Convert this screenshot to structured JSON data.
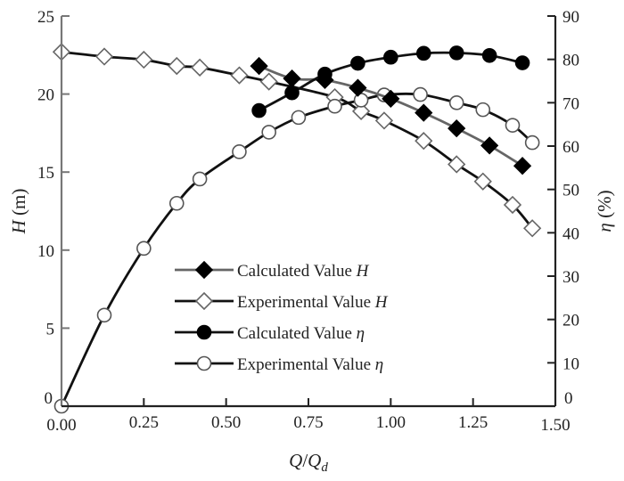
{
  "chart_data": {
    "type": "line",
    "title": "",
    "xlabel": "Q/Qd",
    "xlabel_parts": {
      "main": "Q",
      "sep": "/",
      "q": "Q",
      "sub": "d"
    },
    "ylabel": "H (m)",
    "ylabel_parts": {
      "sym": "H",
      "unit": " (m)"
    },
    "y2label": "η (%)",
    "y2label_parts": {
      "sym": "η",
      "unit": " (%)"
    },
    "xlim": [
      0,
      1.5
    ],
    "ylim": [
      0,
      25
    ],
    "y2lim": [
      0,
      90
    ],
    "grid": false,
    "x_ticks": [
      "0.00",
      "0.25",
      "0.50",
      "0.75",
      "1.00",
      "1.25",
      "1.50"
    ],
    "x_tick_values": [
      0,
      0.25,
      0.5,
      0.75,
      1.0,
      1.25,
      1.5
    ],
    "y_ticks": [
      "0",
      "5",
      "10",
      "15",
      "20",
      "25"
    ],
    "y_tick_values": [
      0,
      5,
      10,
      15,
      20,
      25
    ],
    "y2_ticks": [
      "0",
      "10",
      "20",
      "30",
      "40",
      "50",
      "60",
      "70",
      "80",
      "90"
    ],
    "y2_tick_values": [
      0,
      10,
      20,
      30,
      40,
      50,
      60,
      70,
      80,
      90
    ],
    "legend_position": "lower-center",
    "series": [
      {
        "name": "Calculated Value H",
        "label_text": "Calculated Value ",
        "label_sym": "H",
        "axis": "left",
        "marker": "diamond-filled",
        "line_color": "#666666",
        "x": [
          0.6,
          0.7,
          0.8,
          0.9,
          1.0,
          1.1,
          1.2,
          1.3,
          1.4
        ],
        "y": [
          21.8,
          21.0,
          20.9,
          20.4,
          19.7,
          18.8,
          17.8,
          16.7,
          15.4
        ]
      },
      {
        "name": "Experimental Value H",
        "label_text": "Experimental Value ",
        "label_sym": "H",
        "axis": "left",
        "marker": "diamond-open",
        "line_color": "#111111",
        "x": [
          0.0,
          0.13,
          0.25,
          0.35,
          0.42,
          0.54,
          0.63,
          0.83,
          0.91,
          0.98,
          1.1,
          1.2,
          1.28,
          1.37,
          1.43
        ],
        "y": [
          22.7,
          22.4,
          22.2,
          21.8,
          21.7,
          21.2,
          20.8,
          19.8,
          18.9,
          18.3,
          17.0,
          15.5,
          14.4,
          12.9,
          11.4
        ]
      },
      {
        "name": "Calculated Value η",
        "label_text": "Calculated Value ",
        "label_sym": "η",
        "axis": "right",
        "marker": "circle-filled",
        "line_color": "#111111",
        "x": [
          0.6,
          0.7,
          0.8,
          0.9,
          1.0,
          1.1,
          1.2,
          1.3,
          1.4
        ],
        "y": [
          68.2,
          72.3,
          76.6,
          79.1,
          80.5,
          81.4,
          81.5,
          80.9,
          79.2
        ]
      },
      {
        "name": "Experimental Value η",
        "label_text": "Experimental Value ",
        "label_sym": "η",
        "axis": "right",
        "marker": "circle-open",
        "line_color": "#111111",
        "x": [
          0.0,
          0.13,
          0.25,
          0.35,
          0.42,
          0.54,
          0.63,
          0.72,
          0.83,
          0.91,
          0.98,
          1.09,
          1.2,
          1.28,
          1.37,
          1.43
        ],
        "y": [
          0.0,
          21.0,
          36.4,
          46.8,
          52.4,
          58.7,
          63.2,
          66.6,
          69.2,
          70.6,
          71.8,
          71.9,
          70.0,
          68.4,
          64.8,
          60.8
        ]
      }
    ]
  }
}
